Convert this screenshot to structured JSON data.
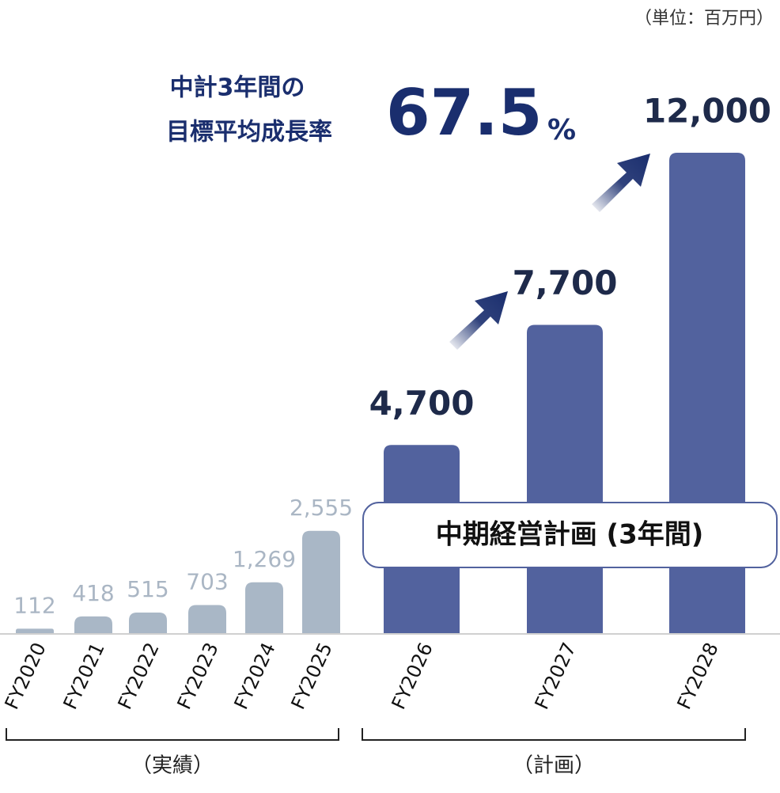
{
  "chart_data": {
    "type": "bar",
    "unit_note": "（単位：百万円）",
    "headline": [
      "中計3年間の",
      "目標平均成長率"
    ],
    "rate": 67.5,
    "rate_unit": "%",
    "plan_label": "中期経営計画 (3年間)",
    "group_labels": [
      "（実績）",
      "（計画）"
    ],
    "categories": [
      "FY2020",
      "FY2021",
      "FY2022",
      "FY2023",
      "FY2024",
      "FY2025",
      "FY2026",
      "FY2027",
      "FY2028"
    ],
    "values": [
      112,
      418,
      515,
      703,
      1269,
      2555,
      4700,
      7700,
      12000
    ],
    "value_labels": [
      "112",
      "418",
      "515",
      "703",
      "1,269",
      "2,555",
      "4,700",
      "7,700",
      "12,000"
    ],
    "colors": [
      "#a9b7c6",
      "#a9b7c6",
      "#a9b7c6",
      "#a9b7c6",
      "#a9b7c6",
      "#a9b7c6",
      "#52629e",
      "#52629e",
      "#52629e"
    ]
  }
}
